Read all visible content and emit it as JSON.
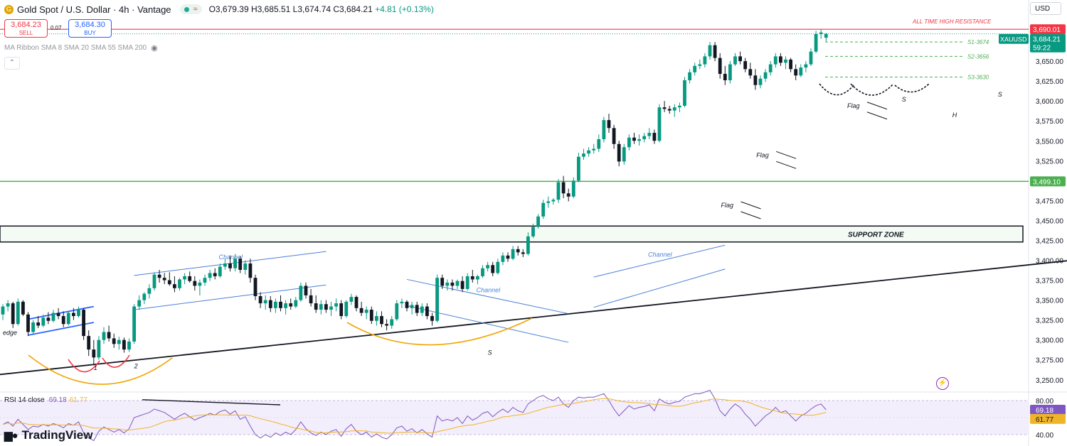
{
  "header": {
    "title": "Gold Spot / U.S. Dollar · 4h · Vantage",
    "wave": "≈",
    "ohlc": "O3,679.39 H3,685.51 L3,674.74 C3,684.21",
    "change": "+4.81 (+0.13%)"
  },
  "trade": {
    "sell_price": "3,684.23",
    "sell_label": "SELL",
    "spread": "0.07",
    "buy_price": "3,684.30",
    "buy_label": "BUY"
  },
  "indicator_label": "MA Ribbon SMA 8 SMA 20 SMA 55 SMA 200",
  "currency": "USD",
  "rsi_header": {
    "label": "RSI 14 close",
    "value": "69.18",
    "ma": "61.77"
  },
  "branding": {
    "logo_text": "TradingView"
  },
  "colors": {
    "up": "#089981",
    "down": "#131722",
    "resistance": "#f23645",
    "support": "#4caf50",
    "channel": "#4a7fd6",
    "pattern": "#f2a400",
    "rsi": "#7e57c2",
    "rsi_ma": "#f0b429"
  },
  "chart_data": {
    "type": "candlestick",
    "symbol": "XAUUSD",
    "timeframe": "4h",
    "ylim": [
      3240,
      3700
    ],
    "y_ticks": [
      "3,650.00",
      "3,625.00",
      "3,600.00",
      "3,575.00",
      "3,550.00",
      "3,525.00",
      "3,475.00",
      "3,450.00",
      "3,425.00",
      "3,400.00",
      "3,375.00",
      "3,350.00",
      "3,325.00",
      "3,300.00",
      "3,275.00",
      "3,250.00"
    ],
    "last_price": {
      "value": 3684.21,
      "label": "3,684.21",
      "symbol": "XAUUSD",
      "countdown": "59:22"
    },
    "resistance": {
      "value": 3690.01,
      "label": "3,690.01",
      "text": "ALL TIME HIGH RESISTANCE"
    },
    "support_line": {
      "value": 3499.1,
      "label": "3,499.10"
    },
    "support_zone": {
      "low": 3423,
      "high": 3443,
      "text": "SUPPORT ZONE"
    },
    "levels": [
      {
        "text": "S1-3674",
        "value": 3674
      },
      {
        "text": "S2-3656",
        "value": 3656
      },
      {
        "text": "S3-3630",
        "value": 3630
      }
    ],
    "trendline": {
      "from": [
        0,
        3262
      ],
      "to": [
        219,
        3405
      ]
    },
    "channels": [
      {
        "text": "Channel",
        "upper": [
          [
            26,
            3381
          ],
          [
            64,
            3411
          ]
        ],
        "lower": [
          [
            26,
            3338
          ],
          [
            64,
            3369
          ]
        ]
      },
      {
        "text": "Channel",
        "upper": [
          [
            80,
            3376
          ],
          [
            112,
            3333
          ]
        ],
        "lower": [
          [
            80,
            3343
          ],
          [
            112,
            3297
          ]
        ]
      },
      {
        "text": "Channel",
        "upper": [
          [
            117,
            3379
          ],
          [
            143,
            3419
          ]
        ],
        "lower": [
          [
            117,
            3341
          ],
          [
            143,
            3389
          ]
        ]
      },
      {
        "upper": [
          [
            5,
            3326
          ],
          [
            18,
            3342
          ]
        ],
        "lower": [
          [
            5,
            3306
          ],
          [
            18,
            3322
          ]
        ]
      }
    ],
    "flags": [
      {
        "text": "Flag",
        "x": 145,
        "y": 3470
      },
      {
        "text": "Flag",
        "x": 152,
        "y": 3533
      },
      {
        "text": "Flag",
        "x": 170,
        "y": 3595
      }
    ],
    "pattern_labels": [
      {
        "text": "S",
        "x": 178,
        "y": 3603
      },
      {
        "text": "H",
        "x": 188,
        "y": 3583
      },
      {
        "text": "S",
        "x": 197,
        "y": 3609
      },
      {
        "text": "S",
        "x": 96,
        "y": 3285
      },
      {
        "text": "1",
        "x": 18,
        "y": 3266
      },
      {
        "text": "2",
        "x": 26,
        "y": 3268
      },
      {
        "text": "edge",
        "x": 0,
        "y": 3310
      }
    ],
    "candles": [
      [
        3332,
        3345,
        3325,
        3342
      ],
      [
        3342,
        3350,
        3336,
        3346
      ],
      [
        3346,
        3348,
        3315,
        3320
      ],
      [
        3320,
        3352,
        3318,
        3348
      ],
      [
        3348,
        3350,
        3330,
        3332
      ],
      [
        3332,
        3335,
        3305,
        3310
      ],
      [
        3310,
        3325,
        3308,
        3322
      ],
      [
        3322,
        3330,
        3315,
        3318
      ],
      [
        3318,
        3332,
        3316,
        3328
      ],
      [
        3328,
        3335,
        3320,
        3324
      ],
      [
        3324,
        3338,
        3322,
        3334
      ],
      [
        3334,
        3340,
        3326,
        3330
      ],
      [
        3330,
        3336,
        3316,
        3320
      ],
      [
        3320,
        3336,
        3318,
        3334
      ],
      [
        3334,
        3340,
        3325,
        3330
      ],
      [
        3330,
        3342,
        3328,
        3338
      ],
      [
        3338,
        3340,
        3300,
        3305
      ],
      [
        3305,
        3312,
        3280,
        3288
      ],
      [
        3288,
        3300,
        3268,
        3278
      ],
      [
        3278,
        3305,
        3275,
        3300
      ],
      [
        3300,
        3316,
        3295,
        3310
      ],
      [
        3310,
        3318,
        3298,
        3302
      ],
      [
        3302,
        3308,
        3290,
        3295
      ],
      [
        3295,
        3304,
        3288,
        3300
      ],
      [
        3300,
        3303,
        3284,
        3288
      ],
      [
        3288,
        3302,
        3285,
        3298
      ],
      [
        3298,
        3345,
        3295,
        3342
      ],
      [
        3342,
        3356,
        3338,
        3350
      ],
      [
        3350,
        3360,
        3345,
        3358
      ],
      [
        3358,
        3370,
        3352,
        3365
      ],
      [
        3365,
        3385,
        3362,
        3382
      ],
      [
        3382,
        3388,
        3372,
        3378
      ],
      [
        3378,
        3384,
        3370,
        3375
      ],
      [
        3375,
        3385,
        3368,
        3370
      ],
      [
        3370,
        3380,
        3360,
        3365
      ],
      [
        3365,
        3378,
        3362,
        3376
      ],
      [
        3376,
        3384,
        3370,
        3380
      ],
      [
        3380,
        3386,
        3372,
        3374
      ],
      [
        3374,
        3380,
        3362,
        3368
      ],
      [
        3368,
        3376,
        3356,
        3372
      ],
      [
        3372,
        3382,
        3368,
        3378
      ],
      [
        3378,
        3388,
        3374,
        3384
      ],
      [
        3384,
        3390,
        3376,
        3380
      ],
      [
        3380,
        3396,
        3378,
        3392
      ],
      [
        3392,
        3402,
        3388,
        3396
      ],
      [
        3396,
        3406,
        3386,
        3390
      ],
      [
        3390,
        3408,
        3386,
        3402
      ],
      [
        3402,
        3405,
        3384,
        3388
      ],
      [
        3388,
        3400,
        3382,
        3396
      ],
      [
        3396,
        3402,
        3372,
        3378
      ],
      [
        3378,
        3382,
        3350,
        3355
      ],
      [
        3355,
        3360,
        3340,
        3346
      ],
      [
        3346,
        3356,
        3338,
        3350
      ],
      [
        3350,
        3355,
        3335,
        3340
      ],
      [
        3340,
        3352,
        3334,
        3348
      ],
      [
        3348,
        3356,
        3336,
        3340
      ],
      [
        3340,
        3350,
        3332,
        3346
      ],
      [
        3346,
        3352,
        3338,
        3342
      ],
      [
        3342,
        3354,
        3340,
        3350
      ],
      [
        3350,
        3372,
        3348,
        3368
      ],
      [
        3368,
        3372,
        3352,
        3356
      ],
      [
        3356,
        3364,
        3342,
        3346
      ],
      [
        3346,
        3356,
        3334,
        3338
      ],
      [
        3338,
        3350,
        3332,
        3345
      ],
      [
        3345,
        3350,
        3334,
        3338
      ],
      [
        3338,
        3348,
        3330,
        3342
      ],
      [
        3342,
        3352,
        3336,
        3346
      ],
      [
        3346,
        3350,
        3326,
        3330
      ],
      [
        3330,
        3350,
        3328,
        3348
      ],
      [
        3348,
        3358,
        3344,
        3354
      ],
      [
        3354,
        3356,
        3336,
        3340
      ],
      [
        3340,
        3348,
        3330,
        3334
      ],
      [
        3334,
        3342,
        3326,
        3338
      ],
      [
        3338,
        3342,
        3320,
        3324
      ],
      [
        3324,
        3336,
        3318,
        3330
      ],
      [
        3330,
        3336,
        3316,
        3320
      ],
      [
        3320,
        3326,
        3312,
        3318
      ],
      [
        3318,
        3330,
        3314,
        3326
      ],
      [
        3326,
        3350,
        3324,
        3346
      ],
      [
        3346,
        3352,
        3340,
        3348
      ],
      [
        3348,
        3350,
        3336,
        3340
      ],
      [
        3340,
        3348,
        3332,
        3344
      ],
      [
        3344,
        3348,
        3330,
        3334
      ],
      [
        3334,
        3346,
        3330,
        3342
      ],
      [
        3342,
        3346,
        3326,
        3330
      ],
      [
        3330,
        3334,
        3318,
        3324
      ],
      [
        3324,
        3382,
        3322,
        3378
      ],
      [
        3378,
        3382,
        3364,
        3368
      ],
      [
        3368,
        3376,
        3362,
        3372
      ],
      [
        3372,
        3376,
        3362,
        3368
      ],
      [
        3368,
        3376,
        3364,
        3374
      ],
      [
        3374,
        3380,
        3360,
        3364
      ],
      [
        3364,
        3384,
        3362,
        3380
      ],
      [
        3380,
        3388,
        3372,
        3376
      ],
      [
        3376,
        3382,
        3370,
        3380
      ],
      [
        3380,
        3394,
        3378,
        3390
      ],
      [
        3390,
        3398,
        3386,
        3394
      ],
      [
        3394,
        3398,
        3380,
        3384
      ],
      [
        3384,
        3402,
        3382,
        3398
      ],
      [
        3398,
        3410,
        3394,
        3406
      ],
      [
        3406,
        3410,
        3398,
        3402
      ],
      [
        3402,
        3418,
        3400,
        3414
      ],
      [
        3414,
        3418,
        3406,
        3410
      ],
      [
        3410,
        3414,
        3404,
        3408
      ],
      [
        3408,
        3435,
        3406,
        3430
      ],
      [
        3430,
        3446,
        3428,
        3442
      ],
      [
        3442,
        3458,
        3440,
        3455
      ],
      [
        3455,
        3476,
        3452,
        3472
      ],
      [
        3472,
        3480,
        3466,
        3474
      ],
      [
        3474,
        3478,
        3470,
        3476
      ],
      [
        3476,
        3502,
        3472,
        3498
      ],
      [
        3498,
        3506,
        3478,
        3484
      ],
      [
        3484,
        3490,
        3474,
        3480
      ],
      [
        3480,
        3504,
        3478,
        3500
      ],
      [
        3500,
        3535,
        3498,
        3530
      ],
      [
        3530,
        3540,
        3526,
        3534
      ],
      [
        3534,
        3542,
        3530,
        3538
      ],
      [
        3538,
        3546,
        3534,
        3540
      ],
      [
        3540,
        3558,
        3536,
        3552
      ],
      [
        3552,
        3580,
        3548,
        3576
      ],
      [
        3576,
        3584,
        3560,
        3566
      ],
      [
        3566,
        3570,
        3540,
        3546
      ],
      [
        3546,
        3550,
        3518,
        3524
      ],
      [
        3524,
        3546,
        3520,
        3542
      ],
      [
        3542,
        3558,
        3538,
        3554
      ],
      [
        3554,
        3560,
        3546,
        3550
      ],
      [
        3550,
        3558,
        3544,
        3552
      ],
      [
        3552,
        3560,
        3548,
        3556
      ],
      [
        3556,
        3566,
        3552,
        3560
      ],
      [
        3560,
        3564,
        3546,
        3550
      ],
      [
        3550,
        3596,
        3548,
        3592
      ],
      [
        3592,
        3600,
        3586,
        3590
      ],
      [
        3590,
        3594,
        3584,
        3588
      ],
      [
        3588,
        3596,
        3580,
        3592
      ],
      [
        3592,
        3598,
        3586,
        3594
      ],
      [
        3594,
        3630,
        3592,
        3626
      ],
      [
        3626,
        3640,
        3622,
        3636
      ],
      [
        3636,
        3648,
        3632,
        3644
      ],
      [
        3644,
        3652,
        3640,
        3646
      ],
      [
        3646,
        3660,
        3642,
        3656
      ],
      [
        3656,
        3674,
        3652,
        3670
      ],
      [
        3670,
        3674,
        3650,
        3654
      ],
      [
        3654,
        3660,
        3628,
        3634
      ],
      [
        3634,
        3644,
        3620,
        3626
      ],
      [
        3626,
        3650,
        3622,
        3646
      ],
      [
        3646,
        3660,
        3644,
        3656
      ],
      [
        3656,
        3662,
        3646,
        3650
      ],
      [
        3650,
        3654,
        3636,
        3640
      ],
      [
        3640,
        3648,
        3628,
        3632
      ],
      [
        3632,
        3640,
        3614,
        3620
      ],
      [
        3620,
        3632,
        3616,
        3628
      ],
      [
        3628,
        3640,
        3624,
        3636
      ],
      [
        3636,
        3650,
        3632,
        3646
      ],
      [
        3646,
        3660,
        3642,
        3656
      ],
      [
        3656,
        3660,
        3644,
        3648
      ],
      [
        3648,
        3656,
        3640,
        3652
      ],
      [
        3652,
        3654,
        3636,
        3640
      ],
      [
        3640,
        3646,
        3626,
        3632
      ],
      [
        3632,
        3646,
        3630,
        3642
      ],
      [
        3642,
        3650,
        3636,
        3646
      ],
      [
        3646,
        3666,
        3644,
        3662
      ],
      [
        3662,
        3688,
        3660,
        3684
      ],
      [
        3684,
        3690,
        3678,
        3686
      ],
      [
        3679.39,
        3685.51,
        3674.74,
        3684.21
      ]
    ],
    "rsi": {
      "ylim": [
        30,
        90
      ],
      "ticks": [
        "80.00",
        "40.00"
      ],
      "value_label": "69.18",
      "ma_label": "61.77",
      "values": [
        52,
        55,
        50,
        58,
        52,
        46,
        50,
        49,
        52,
        50,
        53,
        51,
        48,
        53,
        51,
        55,
        42,
        36,
        33,
        44,
        49,
        46,
        43,
        46,
        42,
        47,
        60,
        62,
        64,
        66,
        70,
        68,
        66,
        62,
        58,
        62,
        65,
        61,
        57,
        60,
        62,
        65,
        63,
        67,
        69,
        64,
        68,
        58,
        61,
        50,
        40,
        36,
        40,
        37,
        42,
        39,
        43,
        40,
        46,
        55,
        47,
        42,
        39,
        43,
        40,
        44,
        46,
        38,
        47,
        52,
        44,
        40,
        43,
        37,
        41,
        37,
        35,
        40,
        48,
        50,
        44,
        47,
        42,
        46,
        41,
        37,
        62,
        56,
        58,
        56,
        60,
        53,
        62,
        57,
        60,
        65,
        67,
        61,
        66,
        70,
        66,
        72,
        68,
        66,
        76,
        80,
        84,
        86,
        82,
        80,
        84,
        76,
        72,
        80,
        84,
        83,
        84,
        84,
        86,
        88,
        80,
        70,
        62,
        68,
        74,
        70,
        72,
        73,
        75,
        68,
        82,
        78,
        76,
        78,
        79,
        84,
        86,
        88,
        88,
        90,
        92,
        82,
        68,
        62,
        70,
        76,
        72,
        64,
        58,
        50,
        56,
        62,
        66,
        72,
        66,
        68,
        62,
        56,
        62,
        65,
        70,
        74,
        76,
        69.18
      ]
    }
  }
}
